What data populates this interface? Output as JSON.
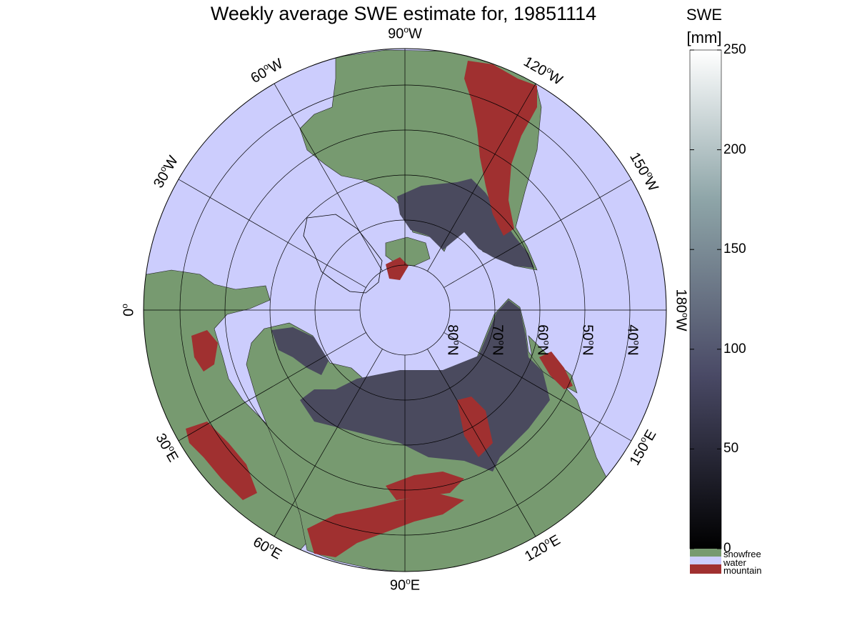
{
  "title": "Weekly average SWE estimate for, 19851114",
  "colorbar": {
    "label_line1": "SWE",
    "label_line2": "[mm]",
    "ticks": [
      0,
      50,
      100,
      150,
      200,
      250
    ],
    "range": [
      0,
      250
    ],
    "gradient": [
      "#000000",
      "#4a4a66",
      "#8ea5a8",
      "#ffffff"
    ],
    "categories": [
      {
        "name": "snowfree",
        "color": "#779a70"
      },
      {
        "name": "water",
        "color": "#cccdfd"
      },
      {
        "name": "mountain",
        "color": "#a03030"
      }
    ]
  },
  "map": {
    "projection": "north polar stereographic",
    "ocean_color": "#cccdfd",
    "land_color": "#779a70",
    "snow_color": "#4a4a5e",
    "mountain_color": "#a03030",
    "longitude_labels": [
      {
        "deg": "90",
        "dir": "W",
        "angle": 90
      },
      {
        "deg": "120",
        "dir": "W",
        "angle": 60
      },
      {
        "deg": "150",
        "dir": "W",
        "angle": 30
      },
      {
        "deg": "180",
        "dir": "W",
        "angle": 0
      },
      {
        "deg": "150",
        "dir": "E",
        "angle": -30
      },
      {
        "deg": "120",
        "dir": "E",
        "angle": -60
      },
      {
        "deg": "90",
        "dir": "E",
        "angle": -90
      },
      {
        "deg": "60",
        "dir": "E",
        "angle": -120
      },
      {
        "deg": "30",
        "dir": "E",
        "angle": -150
      },
      {
        "deg": "0",
        "dir": "",
        "angle": 180
      },
      {
        "deg": "30",
        "dir": "W",
        "angle": 150
      },
      {
        "deg": "60",
        "dir": "W",
        "angle": 120
      }
    ],
    "latitude_labels": [
      {
        "deg": "80",
        "dir": "N"
      },
      {
        "deg": "70",
        "dir": "N"
      },
      {
        "deg": "60",
        "dir": "N"
      },
      {
        "deg": "50",
        "dir": "N"
      },
      {
        "deg": "40",
        "dir": "N"
      }
    ]
  }
}
